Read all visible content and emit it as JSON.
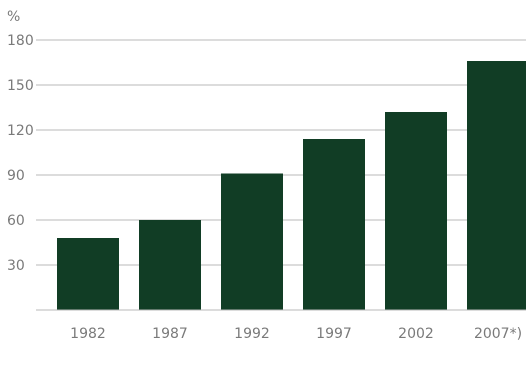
{
  "chart_data": {
    "type": "bar",
    "y_unit": "%",
    "categories": [
      "1982",
      "1987",
      "1992",
      "1997",
      "2002",
      "2007*)"
    ],
    "values": [
      48,
      60,
      91,
      114,
      132,
      166
    ],
    "yticks": [
      30,
      60,
      90,
      120,
      150,
      180
    ],
    "ylim": [
      0,
      180
    ],
    "grid": true,
    "bar_color": "#113d25",
    "title": "",
    "xlabel": "",
    "ylabel": ""
  }
}
